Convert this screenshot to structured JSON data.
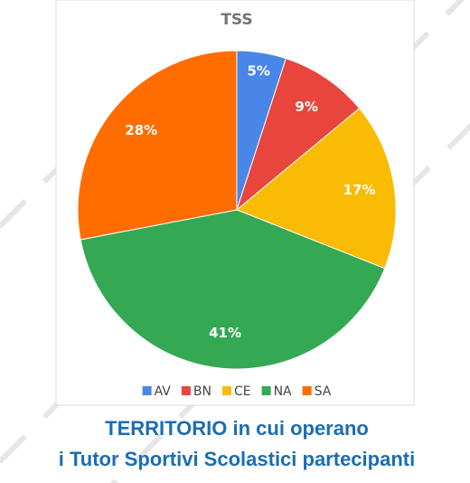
{
  "chart_data": {
    "type": "pie",
    "title": "TSS",
    "categories": [
      "AV",
      "BN",
      "CE",
      "NA",
      "SA"
    ],
    "values": [
      5,
      9,
      17,
      41,
      28
    ],
    "value_labels": [
      "5%",
      "9%",
      "17%",
      "41%",
      "28%"
    ],
    "colors": [
      "#4a86e8",
      "#e8453c",
      "#f9bb03",
      "#34a853",
      "#ff6d00"
    ],
    "legend": "bottom",
    "caption": [
      "TERRITORIO in cui operano",
      "i Tutor Sportivi Scolastici partecipanti"
    ]
  }
}
